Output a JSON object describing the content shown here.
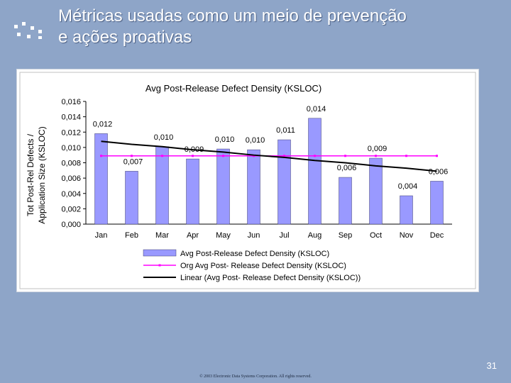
{
  "slide": {
    "title_line1": "Métricas usadas como um meio de prevenção",
    "title_line2": "e ações proativas",
    "page_number": "31",
    "copyright": "© 2003 Electronic Data Systems Corporation. All rights reserved.",
    "background": "#8ea5c8"
  },
  "chart_data": {
    "type": "bar",
    "title": "Avg Post-Release Defect Density (KSLOC)",
    "ylabel_line1": "Tot Post-Rel Defects /",
    "ylabel_line2": "Application Size (KSLOC)",
    "xlabel": "",
    "categories": [
      "Jan",
      "Feb",
      "Mar",
      "Apr",
      "May",
      "Jun",
      "Jul",
      "Aug",
      "Sep",
      "Oct",
      "Nov",
      "Dec"
    ],
    "ylim": [
      0,
      0.016
    ],
    "yticks": [
      "0,000",
      "0,002",
      "0,004",
      "0,006",
      "0,008",
      "0,010",
      "0,012",
      "0,014",
      "0,016"
    ],
    "series": [
      {
        "name": "Avg Post-Release Defect Density (KSLOC)",
        "kind": "bar",
        "color": "#9999ff",
        "values": [
          0.0118,
          0.0069,
          0.0101,
          0.0085,
          0.0098,
          0.0097,
          0.011,
          0.0138,
          0.0061,
          0.0086,
          0.0037,
          0.0056
        ],
        "data_labels": [
          "0,012",
          "0,007",
          "0,010",
          "0,009",
          "0,010",
          "0,010",
          "0,011",
          "0,014",
          "0,006",
          "0,009",
          "0,004",
          "0,006"
        ]
      },
      {
        "name": "Org Avg Post- Release Defect Density (KSLOC)",
        "kind": "line",
        "color": "#ff00ff",
        "values": [
          0.0089,
          0.0089,
          0.0089,
          0.0089,
          0.0089,
          0.0089,
          0.0089,
          0.0089,
          0.0089,
          0.0089,
          0.0089,
          0.0089
        ]
      },
      {
        "name": "Linear (Avg Post- Release Defect Density (KSLOC))",
        "kind": "trend",
        "color": "#000000",
        "values": [
          0.0108,
          0.0104,
          0.0101,
          0.0097,
          0.0094,
          0.009,
          0.0087,
          0.0083,
          0.008,
          0.0076,
          0.0073,
          0.0069
        ]
      }
    ],
    "grid": false,
    "legend_position": "bottom"
  }
}
